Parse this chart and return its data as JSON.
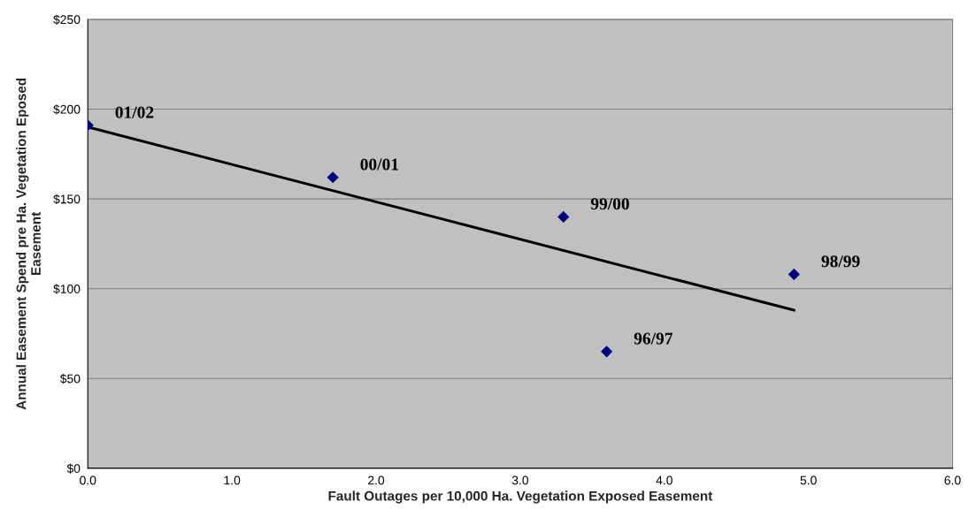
{
  "chart_data": {
    "type": "scatter",
    "xlabel": "Fault Outages per 10,000 Ha. Vegetation Exposed Easement",
    "ylabel": "Annual Easement Spend pre Ha. Vegetation Eposed\nEasement",
    "series": [
      {
        "color": "#000080",
        "marker": "diamond",
        "x": [
          0.0,
          1.7,
          3.3,
          3.6,
          4.9
        ],
        "values": [
          191,
          162,
          140,
          65,
          108
        ]
      },
      {
        "type": "line",
        "color": "#000000",
        "line_style": "solid",
        "marker": "none",
        "x": [
          0.0,
          4.9
        ],
        "values": [
          190,
          88
        ]
      }
    ],
    "annotations": [
      {
        "text": "01/02",
        "x": 0.0,
        "y": 191
      },
      {
        "text": "00/01",
        "x": 1.7,
        "y": 162
      },
      {
        "text": "99/00",
        "x": 3.3,
        "y": 140
      },
      {
        "text": "96/97",
        "x": 3.6,
        "y": 65
      },
      {
        "text": "98/99",
        "x": 4.9,
        "y": 108
      }
    ],
    "xlim": [
      0,
      6
    ],
    "ylim": [
      0,
      250
    ],
    "xticks": [
      {
        "value": 0,
        "label": "0.0"
      },
      {
        "value": 1,
        "label": "1.0"
      },
      {
        "value": 2,
        "label": "2.0"
      },
      {
        "value": 3,
        "label": "3.0"
      },
      {
        "value": 4,
        "label": "4.0"
      },
      {
        "value": 5,
        "label": "5.0"
      },
      {
        "value": 6,
        "label": "6.0"
      }
    ],
    "yticks": [
      {
        "value": 0,
        "label": "$0"
      },
      {
        "value": 50,
        "label": "$50"
      },
      {
        "value": 100,
        "label": "$100"
      },
      {
        "value": 150,
        "label": "$150"
      },
      {
        "value": 200,
        "label": "$200"
      },
      {
        "value": 250,
        "label": "$250"
      }
    ],
    "grid": "y",
    "legend": false
  }
}
